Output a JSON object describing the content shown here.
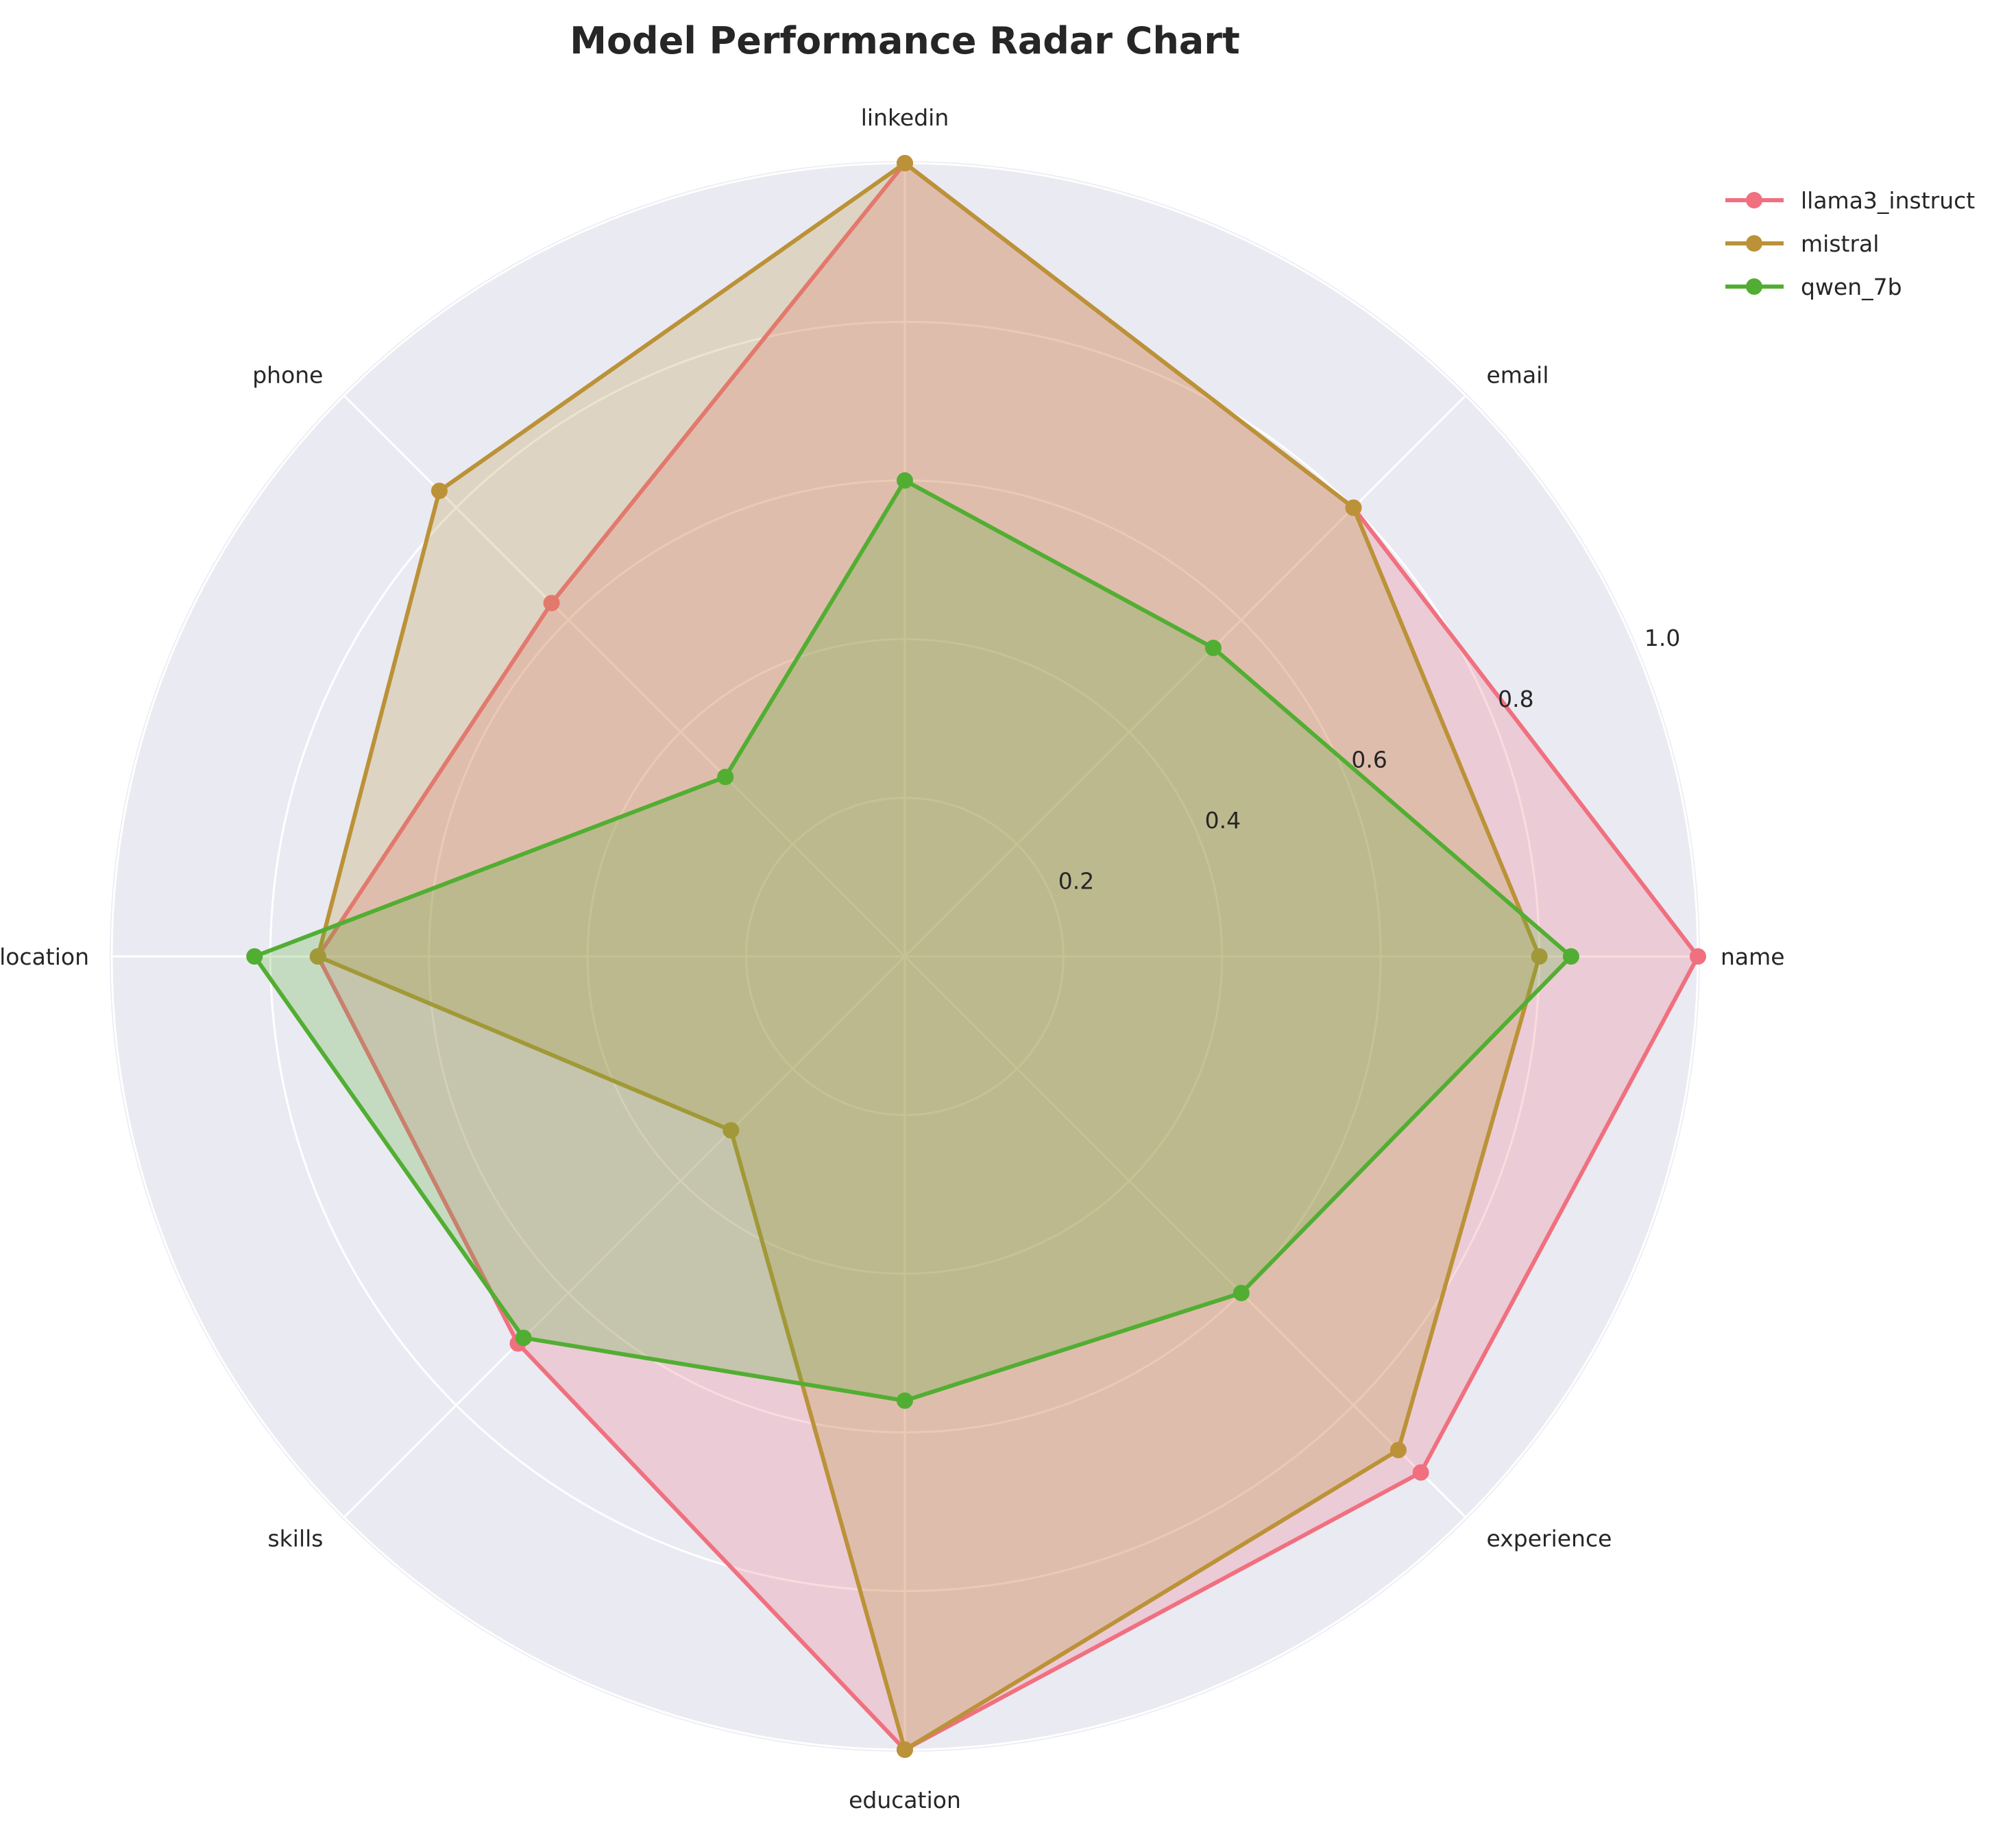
{
  "colors": {
    "background": "#EAEAF2",
    "grid": "#FFFFFF",
    "llama3_instruct": "#F0707F",
    "mistral": "#BB9238",
    "qwen_7b": "#52AE32"
  },
  "chart_data": {
    "type": "radar",
    "title": "Model Performance Radar Chart",
    "categories": [
      "name",
      "email",
      "linkedin",
      "phone",
      "location",
      "skills",
      "education",
      "experience"
    ],
    "rlim": [
      0,
      1.0
    ],
    "rticks": [
      0.2,
      0.4,
      0.6,
      0.8,
      1.0
    ],
    "rtick_labels": [
      "0.2",
      "0.4",
      "0.6",
      "0.8",
      "1.0"
    ],
    "grid": true,
    "legend_position": "top-right",
    "series": [
      {
        "name": "llama3_instruct",
        "values": [
          1.0,
          0.8,
          1.0,
          0.63,
          0.74,
          0.69,
          1.0,
          0.92
        ]
      },
      {
        "name": "mistral",
        "values": [
          0.8,
          0.8,
          1.0,
          0.83,
          0.74,
          0.31,
          1.0,
          0.88
        ]
      },
      {
        "name": "qwen_7b",
        "values": [
          0.84,
          0.55,
          0.6,
          0.32,
          0.82,
          0.68,
          0.56,
          0.6
        ]
      }
    ]
  }
}
